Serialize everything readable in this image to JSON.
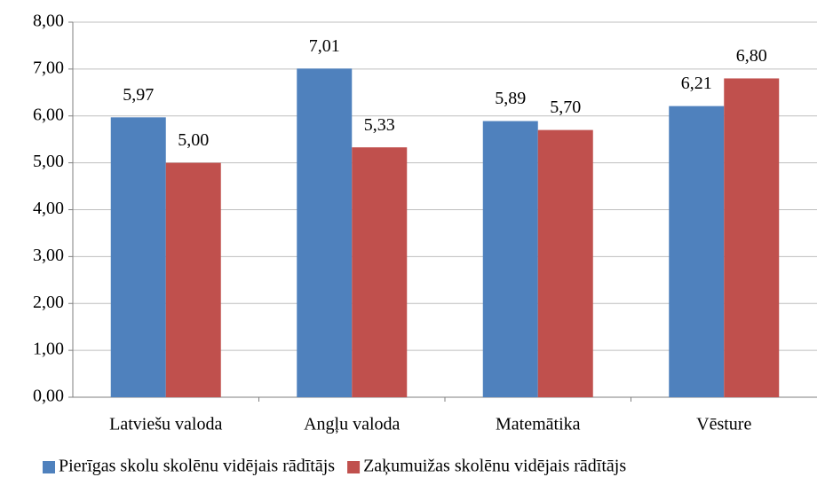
{
  "chart_data": {
    "type": "bar",
    "categories": [
      "Latviešu valoda",
      "Angļu valoda",
      "Matemātika",
      "Vēsture"
    ],
    "series": [
      {
        "name": "Pierīgas skolu skolēnu vidējais rādītājs",
        "color": "#4f81bd",
        "values": [
          5.97,
          7.01,
          5.89,
          6.21
        ],
        "value_labels": [
          "5,97",
          "7,01",
          "5,89",
          "6,21"
        ]
      },
      {
        "name": "Zaķumuižas skolēnu vidējais rādītājs",
        "color": "#c0504d",
        "values": [
          5.0,
          5.33,
          5.7,
          6.8
        ],
        "value_labels": [
          "5,00",
          "5,33",
          "5,70",
          "6,80"
        ]
      }
    ],
    "ylim": [
      0,
      8
    ],
    "yticks": [
      {
        "value": 0,
        "label": "0,00"
      },
      {
        "value": 1,
        "label": "1,00"
      },
      {
        "value": 2,
        "label": "2,00"
      },
      {
        "value": 3,
        "label": "3,00"
      },
      {
        "value": 4,
        "label": "4,00"
      },
      {
        "value": 5,
        "label": "5,00"
      },
      {
        "value": 6,
        "label": "6,00"
      },
      {
        "value": 7,
        "label": "7,00"
      },
      {
        "value": 8,
        "label": "8,00"
      }
    ],
    "grid": true,
    "legend": "bottom"
  }
}
